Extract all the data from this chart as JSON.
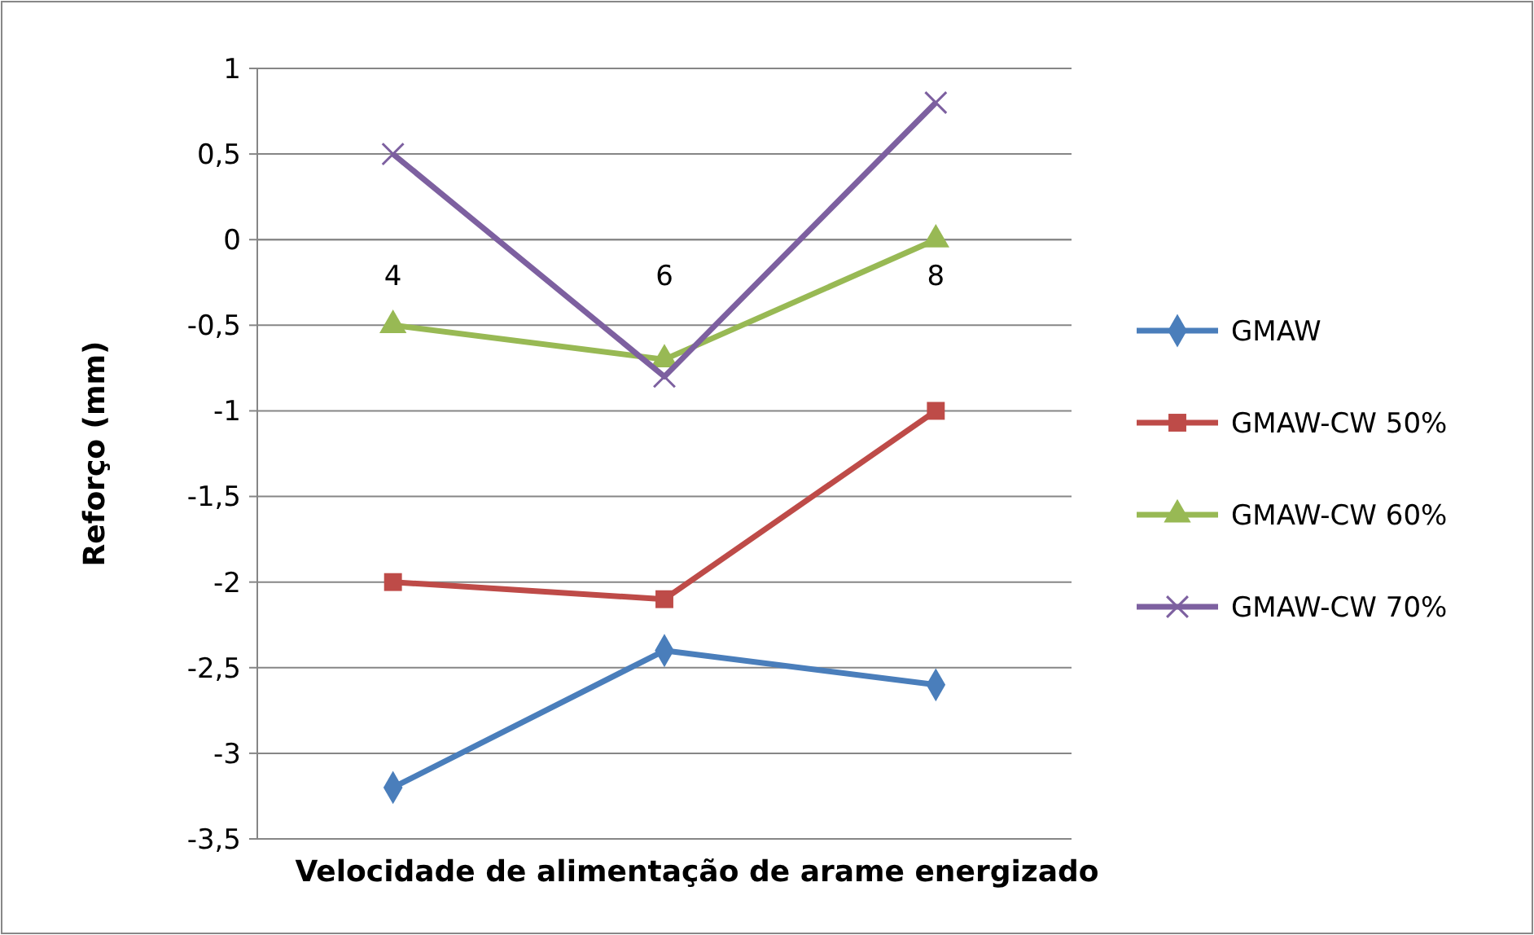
{
  "chart_data": {
    "type": "line",
    "xlabel": "Velocidade de alimentação de arame energizado",
    "ylabel": "Reforço (mm)",
    "categories": [
      "4",
      "6",
      "8"
    ],
    "series": [
      {
        "name": "GMAW",
        "color": "#4a7ebb",
        "values": [
          -3.2,
          -2.4,
          -2.6
        ],
        "marker": "diamond"
      },
      {
        "name": "GMAW-CW 50%",
        "color": "#be4b48",
        "values": [
          -2,
          -2.1,
          -1
        ],
        "marker": "square"
      },
      {
        "name": "GMAW-CW 60%",
        "color": "#98b954",
        "values": [
          -0.5,
          -0.7,
          0
        ],
        "marker": "triangle"
      },
      {
        "name": "GMAW-CW 70%",
        "color": "#7d60a0",
        "values": [
          0.5,
          -0.8,
          0.8
        ],
        "marker": "cross"
      }
    ],
    "ylim": [
      -3.5,
      1
    ],
    "yticks": [
      {
        "value": -3.5,
        "label": "-3,5"
      },
      -3,
      {
        "value": -2.5,
        "label": "-2,5"
      },
      -2,
      {
        "value": -1.5,
        "label": "-1,5"
      },
      -1,
      {
        "value": -0.5,
        "label": "-0,5"
      },
      0,
      {
        "value": 0.5,
        "label": "0,5"
      },
      1
    ],
    "grid": "y",
    "legend": "right"
  }
}
